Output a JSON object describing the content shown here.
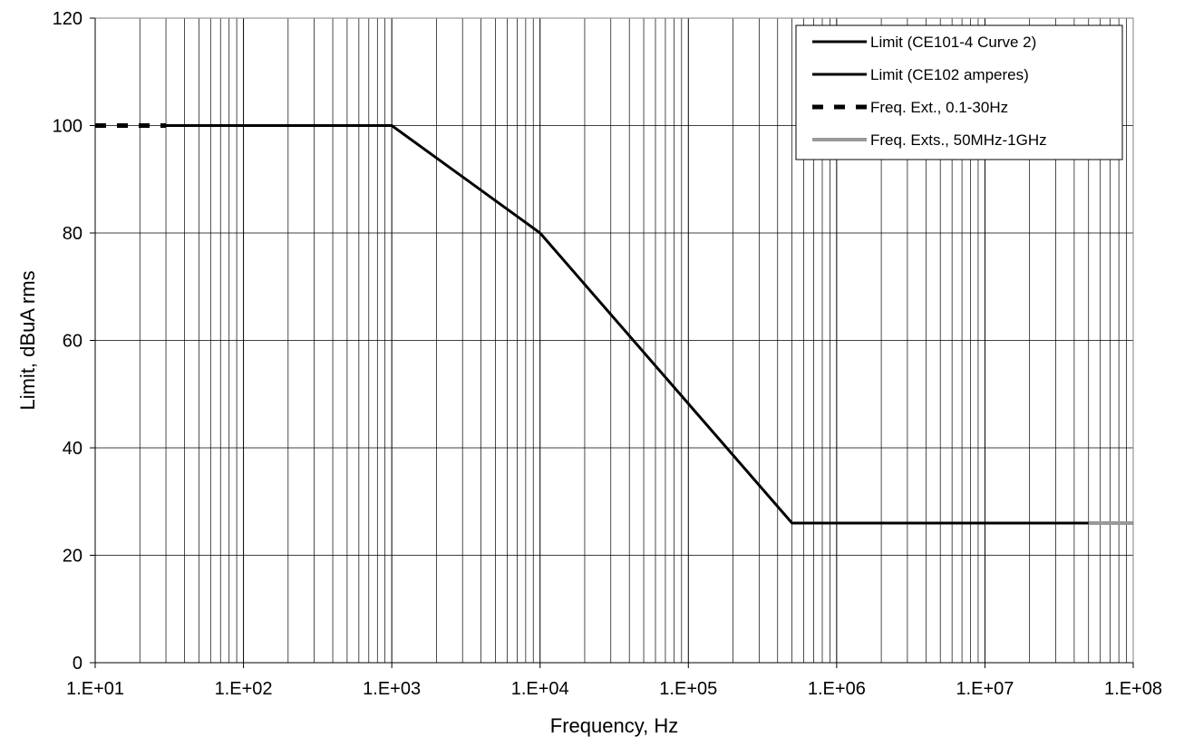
{
  "chart_data": {
    "type": "line",
    "xlabel": "Frequency, Hz",
    "ylabel": "Limit, dBuA rms",
    "x_scale": "log",
    "xlim": [
      10,
      100000000
    ],
    "ylim": [
      0,
      120
    ],
    "x_ticks": [
      10,
      100,
      1000,
      10000,
      100000,
      1000000,
      10000000,
      100000000
    ],
    "x_tick_labels": [
      "1.E+01",
      "1.E+02",
      "1.E+03",
      "1.E+04",
      "1.E+05",
      "1.E+06",
      "1.E+07",
      "1.E+08"
    ],
    "y_ticks": [
      0,
      20,
      40,
      60,
      80,
      100,
      120
    ],
    "y_tick_labels": [
      "0",
      "20",
      "40",
      "60",
      "80",
      "100",
      "120"
    ],
    "grid": true,
    "legend_position": "top-right",
    "series": [
      {
        "name": "Limit (CE101-4 Curve 2)",
        "color": "#000000",
        "style": "solid",
        "x": [
          30,
          1000,
          10000
        ],
        "y": [
          100,
          100,
          80
        ]
      },
      {
        "name": "Limit (CE102 amperes)",
        "color": "#000000",
        "style": "solid",
        "x": [
          10000,
          500000,
          50000000
        ],
        "y": [
          80,
          26,
          26
        ]
      },
      {
        "name": "Freq. Ext., 0.1-30Hz",
        "color": "#000000",
        "style": "dashed",
        "x": [
          10,
          30
        ],
        "y": [
          100,
          100
        ]
      },
      {
        "name": "Freq. Exts., 50MHz-1GHz",
        "color": "#999999",
        "style": "solid",
        "x": [
          50000000,
          100000000
        ],
        "y": [
          26,
          26
        ]
      }
    ]
  }
}
